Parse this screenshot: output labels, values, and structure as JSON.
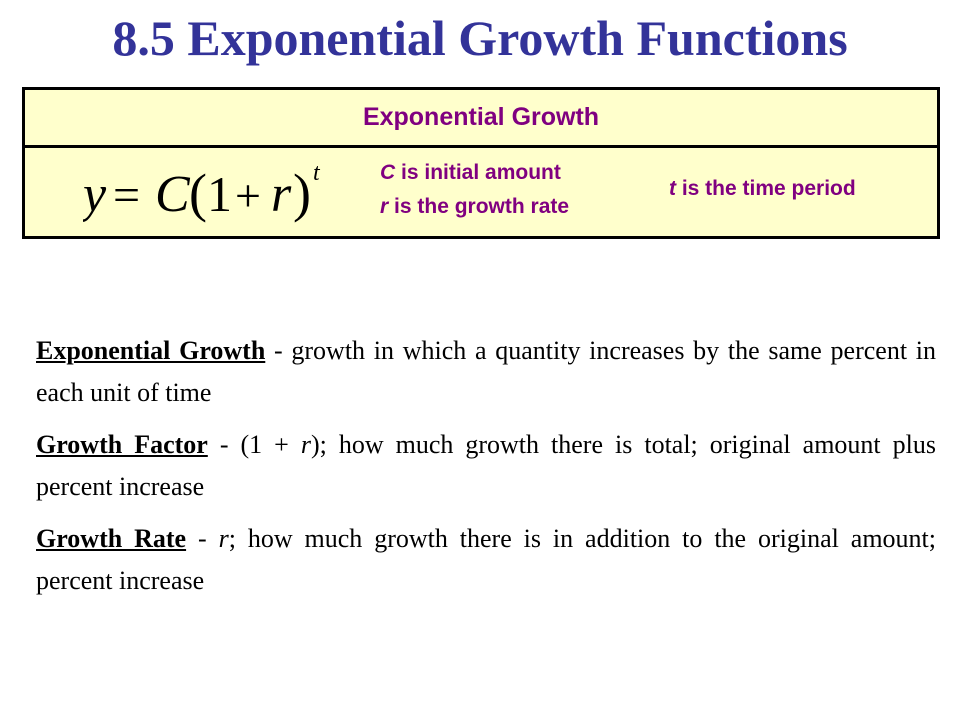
{
  "title": "8.5 Exponential Growth Functions",
  "box": {
    "header": "Exponential Growth",
    "formula": {
      "y": "y",
      "equals": "=",
      "C": "C",
      "open_paren": "(",
      "one": "1",
      "plus": "+",
      "r": "r",
      "close_paren": ")",
      "t": "t"
    },
    "notes": {
      "c_var": "C",
      "c_text": " is initial amount",
      "r_var": "r",
      "r_text": " is the growth rate",
      "t_var": "t",
      "t_text": " is the time period"
    }
  },
  "definitions": [
    {
      "term": "Exponential Growth",
      "text": " - growth in which a quantity increases by the same percent in each unit of time"
    },
    {
      "term": "Growth Factor",
      "text_a": " - (1 + ",
      "var": "r",
      "text_b": "); how much growth there is total; original amount plus percent increase"
    },
    {
      "term": "Growth Rate",
      "text_a": " - ",
      "var": "r",
      "text_b": "; how much growth there is in addition to the original amount; percent increase"
    }
  ],
  "colors": {
    "title": "#333399",
    "box_fill": "#ffffcc",
    "box_text": "#800080"
  }
}
